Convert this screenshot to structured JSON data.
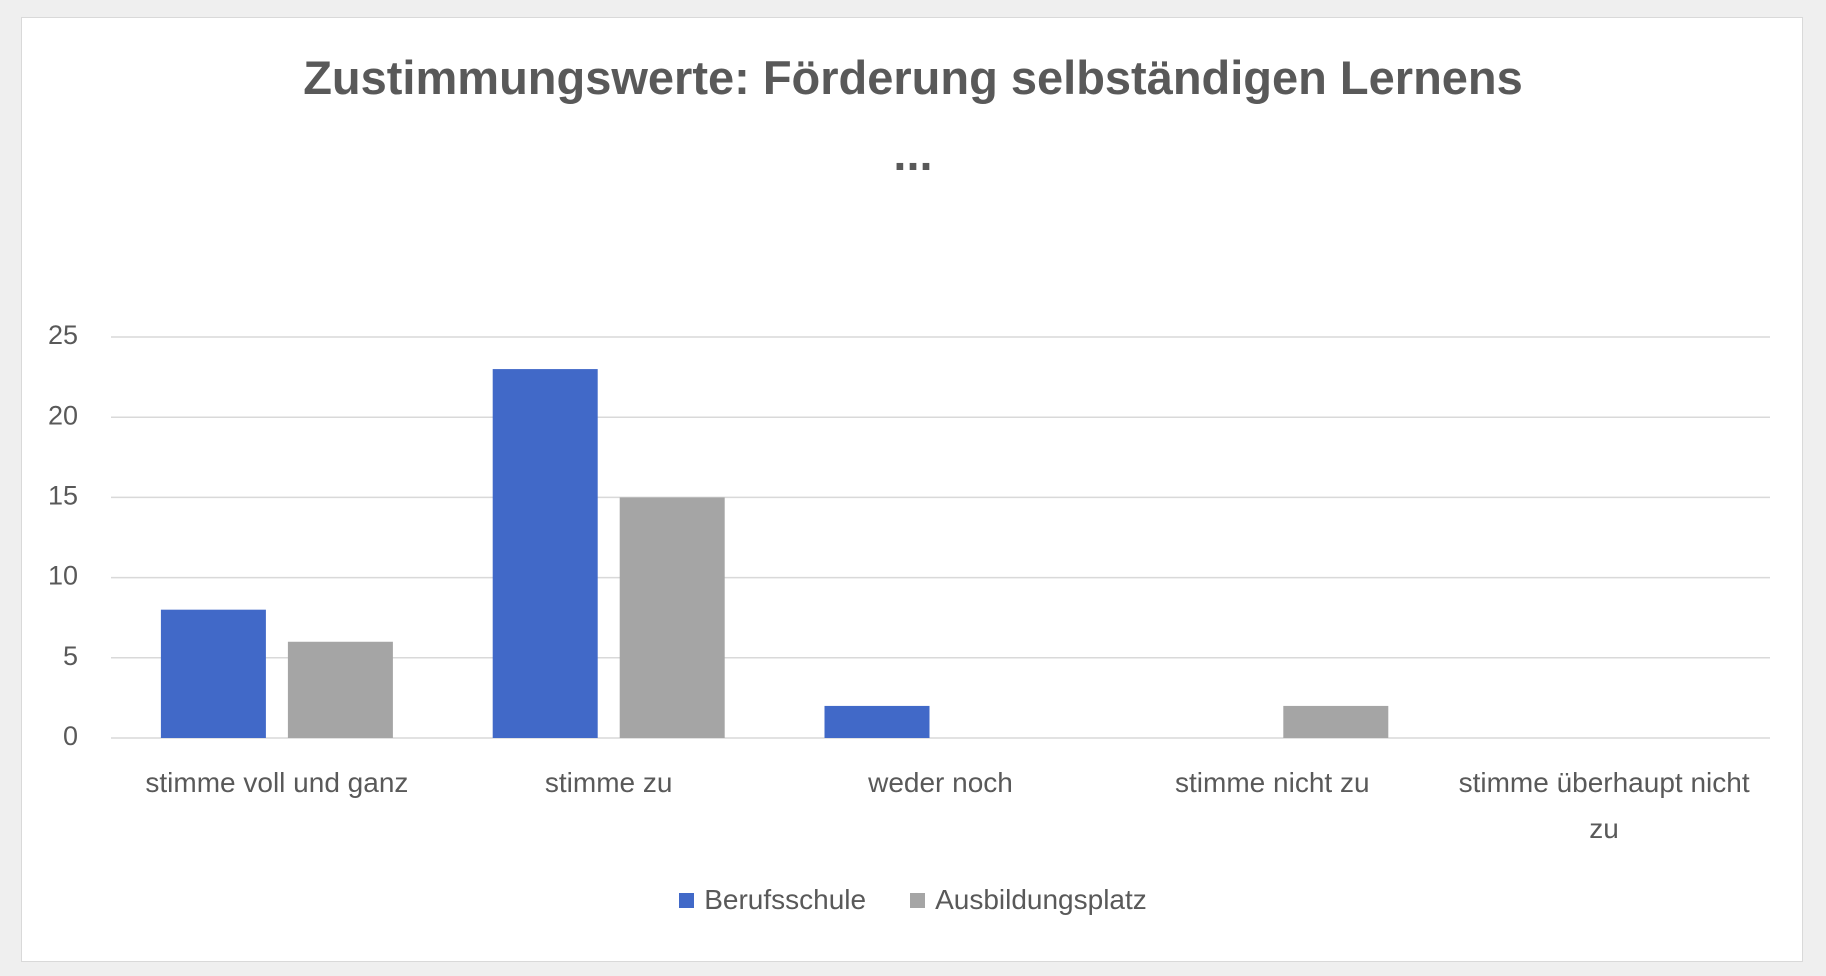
{
  "chart_data": {
    "type": "bar",
    "title": "Zustimmungswerte: Förderung selbständigen Lernens ...",
    "categories": [
      "stimme voll und ganz",
      "stimme zu",
      "weder noch",
      "stimme nicht zu",
      "stimme überhaupt nicht zu"
    ],
    "series": [
      {
        "name": "Berufsschule",
        "color": "#4169c8",
        "values": [
          8,
          23,
          2,
          0,
          0
        ]
      },
      {
        "name": "Ausbildungsplatz",
        "color": "#a5a5a5",
        "values": [
          6,
          15,
          0,
          2,
          0
        ]
      }
    ],
    "ylim": [
      0,
      25
    ],
    "yticks": [
      0,
      5,
      10,
      15,
      20,
      25
    ],
    "grid": true,
    "legend": "bottom"
  }
}
